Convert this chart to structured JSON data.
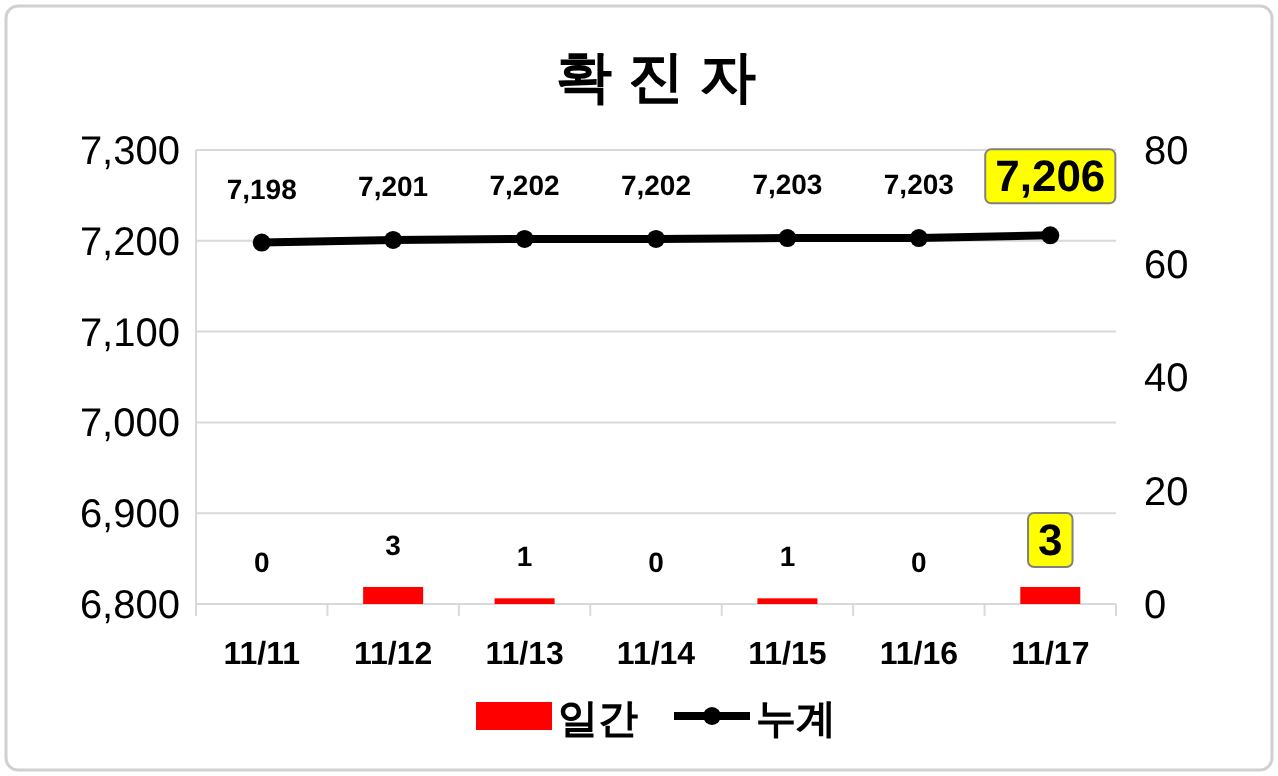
{
  "chart_data": {
    "type": "bar",
    "title": "확 진 자",
    "categories": [
      "11/11",
      "11/12",
      "11/13",
      "11/14",
      "11/15",
      "11/16",
      "11/17"
    ],
    "series": [
      {
        "name": "일간",
        "axis": "y2",
        "color": "#ff0000",
        "values": [
          0,
          3,
          1,
          0,
          1,
          0,
          3
        ],
        "value_labels": [
          "0",
          "3",
          "1",
          "0",
          "1",
          "0",
          "3"
        ]
      },
      {
        "name": "누계",
        "type": "line",
        "axis": "y",
        "color": "#000000",
        "marker": "circle",
        "values": [
          7198,
          7201,
          7202,
          7202,
          7203,
          7203,
          7206
        ],
        "value_labels": [
          "7,198",
          "7,201",
          "7,202",
          "7,202",
          "7,203",
          "7,203",
          "7,206"
        ]
      }
    ],
    "ylim": [
      6800,
      7300
    ],
    "yticks": [
      {
        "value": 6800,
        "label": "6,800"
      },
      {
        "value": 6900,
        "label": "6,900"
      },
      {
        "value": 7000,
        "label": "7,000"
      },
      {
        "value": 7100,
        "label": "7,100"
      },
      {
        "value": 7200,
        "label": "7,200"
      },
      {
        "value": 7300,
        "label": "7,300"
      }
    ],
    "y2lim": [
      0,
      80
    ],
    "y2ticks": [
      0,
      20,
      40,
      60,
      80
    ],
    "grid": "y",
    "legend": "bottom"
  }
}
